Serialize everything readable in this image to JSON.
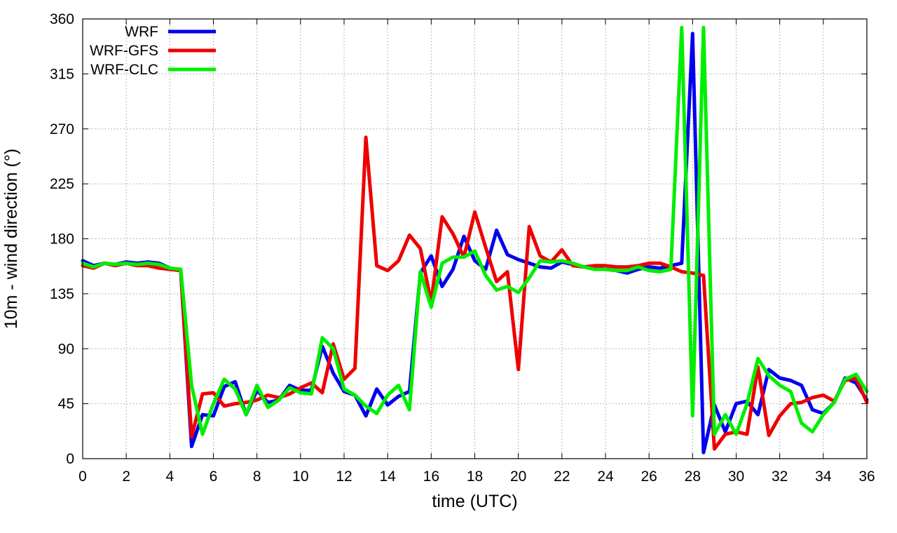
{
  "chart_data": {
    "type": "line",
    "title": "",
    "xlabel": "time (UTC)",
    "ylabel": "10m - wind direction (°)",
    "xlim": [
      0,
      36
    ],
    "ylim": [
      0,
      360
    ],
    "xticks": [
      "0",
      "2",
      "4",
      "6",
      "8",
      "10",
      "12",
      "14",
      "16",
      "18",
      "20",
      "22",
      "24",
      "26",
      "28",
      "30",
      "32",
      "34",
      "36"
    ],
    "yticks": [
      "0",
      "45",
      "90",
      "135",
      "180",
      "225",
      "270",
      "315",
      "360"
    ],
    "grid": true,
    "legend_position": "top-left",
    "series": [
      {
        "name": "WRF",
        "color": "#0000ee",
        "x": [
          0,
          0.5,
          1,
          1.5,
          2,
          2.5,
          3,
          3.5,
          4,
          4.5,
          5,
          5.5,
          6,
          6.5,
          7,
          7.5,
          8,
          8.5,
          9,
          9.5,
          10,
          10.5,
          11,
          11.5,
          12,
          12.5,
          13,
          13.5,
          14,
          14.5,
          15,
          15.5,
          16,
          16.5,
          17,
          17.5,
          18,
          18.5,
          19,
          19.5,
          20,
          20.5,
          21,
          21.5,
          22,
          22.5,
          23,
          23.5,
          24,
          24.5,
          25,
          25.5,
          26,
          26.5,
          27,
          27.5,
          28,
          28.5,
          29,
          29.5,
          30,
          30.5,
          31,
          31.5,
          32,
          32.5,
          33,
          33.5,
          34,
          34.5,
          35,
          35.5,
          36
        ],
        "y": [
          162,
          158,
          160,
          159,
          161,
          160,
          161,
          160,
          156,
          154,
          10,
          36,
          35,
          59,
          63,
          36,
          56,
          46,
          48,
          60,
          56,
          56,
          92,
          70,
          55,
          52,
          35,
          57,
          44,
          51,
          55,
          152,
          166,
          141,
          155,
          182,
          162,
          155,
          187,
          167,
          163,
          160,
          157,
          156,
          161,
          159,
          157,
          156,
          155,
          154,
          152,
          155,
          157,
          156,
          158,
          160,
          348,
          5,
          44,
          22,
          45,
          47,
          36,
          73,
          66,
          64,
          60,
          40,
          37,
          46,
          66,
          62,
          48
        ]
      },
      {
        "name": "WRF-GFS",
        "color": "#ee0000",
        "x": [
          0,
          0.5,
          1,
          1.5,
          2,
          2.5,
          3,
          3.5,
          4,
          4.5,
          5,
          5.5,
          6,
          6.5,
          7,
          7.5,
          8,
          8.5,
          9,
          9.5,
          10,
          10.5,
          11,
          11.5,
          12,
          12.5,
          13,
          13.5,
          14,
          14.5,
          15,
          15.5,
          16,
          16.5,
          17,
          17.5,
          18,
          18.5,
          19,
          19.5,
          20,
          20.5,
          21,
          21.5,
          22,
          22.5,
          23,
          23.5,
          24,
          24.5,
          25,
          25.5,
          26,
          26.5,
          27,
          27.5,
          28,
          28.5,
          29,
          29.5,
          30,
          30.5,
          31,
          31.5,
          32,
          32.5,
          33,
          33.5,
          34,
          34.5,
          35,
          35.5,
          36
        ],
        "y": [
          158,
          156,
          160,
          158,
          160,
          158,
          158,
          156,
          155,
          154,
          18,
          53,
          54,
          43,
          45,
          46,
          48,
          52,
          50,
          53,
          58,
          62,
          54,
          94,
          65,
          74,
          263,
          158,
          154,
          162,
          183,
          172,
          128,
          198,
          184,
          165,
          202,
          173,
          145,
          153,
          73,
          190,
          166,
          161,
          171,
          158,
          157,
          158,
          158,
          157,
          157,
          158,
          160,
          160,
          157,
          153,
          152,
          150,
          8,
          20,
          22,
          20,
          75,
          19,
          35,
          45,
          46,
          50,
          52,
          47,
          64,
          66,
          46
        ]
      },
      {
        "name": "WRF-CLC",
        "color": "#00ee00",
        "x": [
          0,
          0.5,
          1,
          1.5,
          2,
          2.5,
          3,
          3.5,
          4,
          4.5,
          5,
          5.5,
          6,
          6.5,
          7,
          7.5,
          8,
          8.5,
          9,
          9.5,
          10,
          10.5,
          11,
          11.5,
          12,
          12.5,
          13,
          13.5,
          14,
          14.5,
          15,
          15.5,
          16,
          16.5,
          17,
          17.5,
          18,
          18.5,
          19,
          19.5,
          20,
          20.5,
          21,
          21.5,
          22,
          22.5,
          23,
          23.5,
          24,
          24.5,
          25,
          25.5,
          26,
          26.5,
          27,
          27.5,
          28,
          28.5,
          29,
          29.5,
          30,
          30.5,
          31,
          31.5,
          32,
          32.5,
          33,
          33.5,
          34,
          34.5,
          35,
          35.5,
          36
        ],
        "y": [
          160,
          157,
          160,
          159,
          160,
          159,
          160,
          159,
          156,
          155,
          60,
          20,
          45,
          65,
          57,
          36,
          60,
          42,
          48,
          58,
          54,
          53,
          99,
          90,
          57,
          52,
          43,
          37,
          52,
          60,
          40,
          153,
          124,
          160,
          165,
          165,
          170,
          150,
          138,
          141,
          136,
          148,
          162,
          161,
          162,
          160,
          157,
          155,
          155,
          154,
          154,
          157,
          154,
          153,
          155,
          353,
          35,
          353,
          20,
          36,
          20,
          45,
          82,
          68,
          60,
          55,
          29,
          22,
          36,
          46,
          65,
          69,
          55
        ]
      }
    ]
  }
}
